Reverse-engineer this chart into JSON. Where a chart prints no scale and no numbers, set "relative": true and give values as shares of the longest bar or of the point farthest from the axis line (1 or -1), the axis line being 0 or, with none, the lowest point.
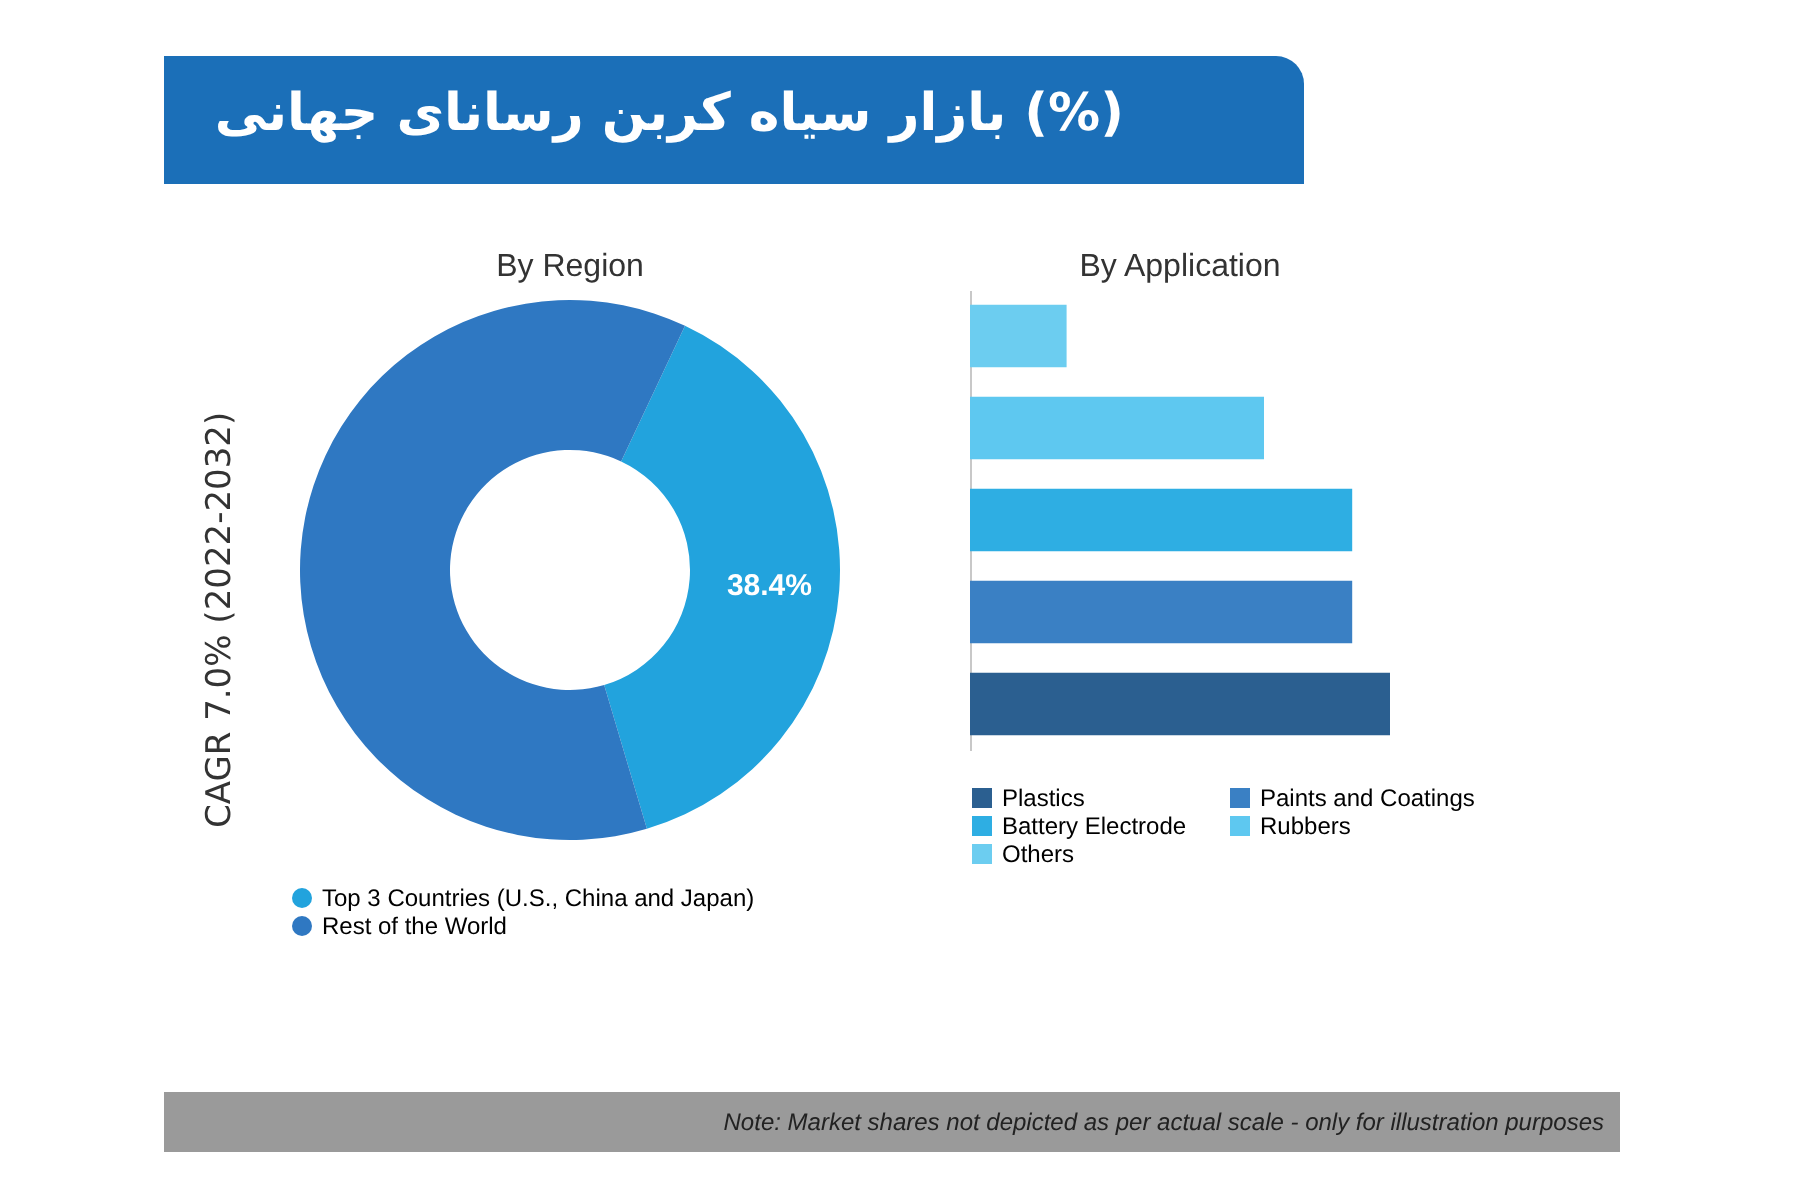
{
  "chart_data": [
    {
      "type": "donut",
      "title": "(%) بازار سیاه کربن رسانای جهانی",
      "subtitle": "By Region",
      "categories": [
        "Top 3 Countries (U.S., China and Japan)",
        "Rest of the World"
      ],
      "values": [
        38.4,
        61.6
      ],
      "colors": [
        "#22a3dd",
        "#2f78c2"
      ],
      "value_labels": [
        "38.4%",
        null
      ],
      "legend": "bottom left",
      "annotations": [
        "CAGR 7.0% (2022-2032)"
      ]
    },
    {
      "type": "bar",
      "orientation": "horizontal",
      "relative": true,
      "stacked": true,
      "title": "By Application",
      "categories": [
        null,
        null,
        null,
        null,
        null
      ],
      "series": [
        {
          "name": "Plastics",
          "color": "#2b5f90",
          "values": [
            null,
            null,
            null,
            null,
            1
          ]
        },
        {
          "name": "Paints and Coatings",
          "color": "#3a80c4",
          "values": [
            null,
            null,
            null,
            0.91,
            null
          ]
        },
        {
          "name": "Battery Electrode",
          "color": "#2eaee3",
          "values": [
            null,
            null,
            0.91,
            null,
            null
          ]
        },
        {
          "name": "Rubbers",
          "color": "#5ec8f0",
          "values": [
            null,
            0.7,
            null,
            null,
            null
          ]
        },
        {
          "name": "Others",
          "color": "#6ccdf0",
          "values": [
            0.23,
            null,
            null,
            null,
            null
          ]
        }
      ],
      "legend": "bottom",
      "tick_labels": false,
      "annotations": [
        "Note: Market shares not depicted as per actual scale - only for illustration purposes"
      ]
    }
  ]
}
